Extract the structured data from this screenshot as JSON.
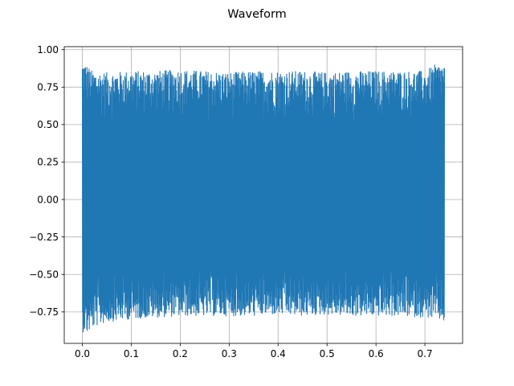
{
  "chart_data": {
    "type": "line",
    "title": "Waveform",
    "xlabel": "",
    "ylabel": "",
    "xlim": [
      -0.037,
      0.777
    ],
    "ylim": [
      -0.96,
      1.02
    ],
    "x_ticks": [
      0.0,
      0.1,
      0.2,
      0.3,
      0.4,
      0.5,
      0.6,
      0.7
    ],
    "x_tick_labels": [
      "0.0",
      "0.1",
      "0.2",
      "0.3",
      "0.4",
      "0.5",
      "0.6",
      "0.7"
    ],
    "y_ticks": [
      -0.75,
      -0.5,
      -0.25,
      0.0,
      0.25,
      0.5,
      0.75,
      1.0
    ],
    "y_tick_labels": [
      "−0.75",
      "−0.50",
      "−0.25",
      "0.00",
      "0.25",
      "0.50",
      "0.75",
      "1.00"
    ],
    "grid": true,
    "legend": "none",
    "series": [
      {
        "color": "#1f77b4",
        "envelope": {
          "x": [
            0.0,
            0.005,
            0.01,
            0.02,
            0.05,
            0.1,
            0.15,
            0.2,
            0.25,
            0.3,
            0.35,
            0.4,
            0.45,
            0.5,
            0.55,
            0.6,
            0.65,
            0.7,
            0.72,
            0.74
          ],
          "upper": [
            0.93,
            0.92,
            0.9,
            0.86,
            0.85,
            0.86,
            0.86,
            0.87,
            0.86,
            0.85,
            0.86,
            0.86,
            0.86,
            0.85,
            0.86,
            0.86,
            0.86,
            0.86,
            0.9,
            0.91
          ],
          "lower": [
            -0.89,
            -0.88,
            -0.9,
            -0.86,
            -0.82,
            -0.8,
            -0.79,
            -0.78,
            -0.78,
            -0.78,
            -0.78,
            -0.77,
            -0.78,
            -0.77,
            -0.78,
            -0.78,
            -0.78,
            -0.79,
            -0.8,
            -0.82
          ]
        }
      }
    ]
  }
}
